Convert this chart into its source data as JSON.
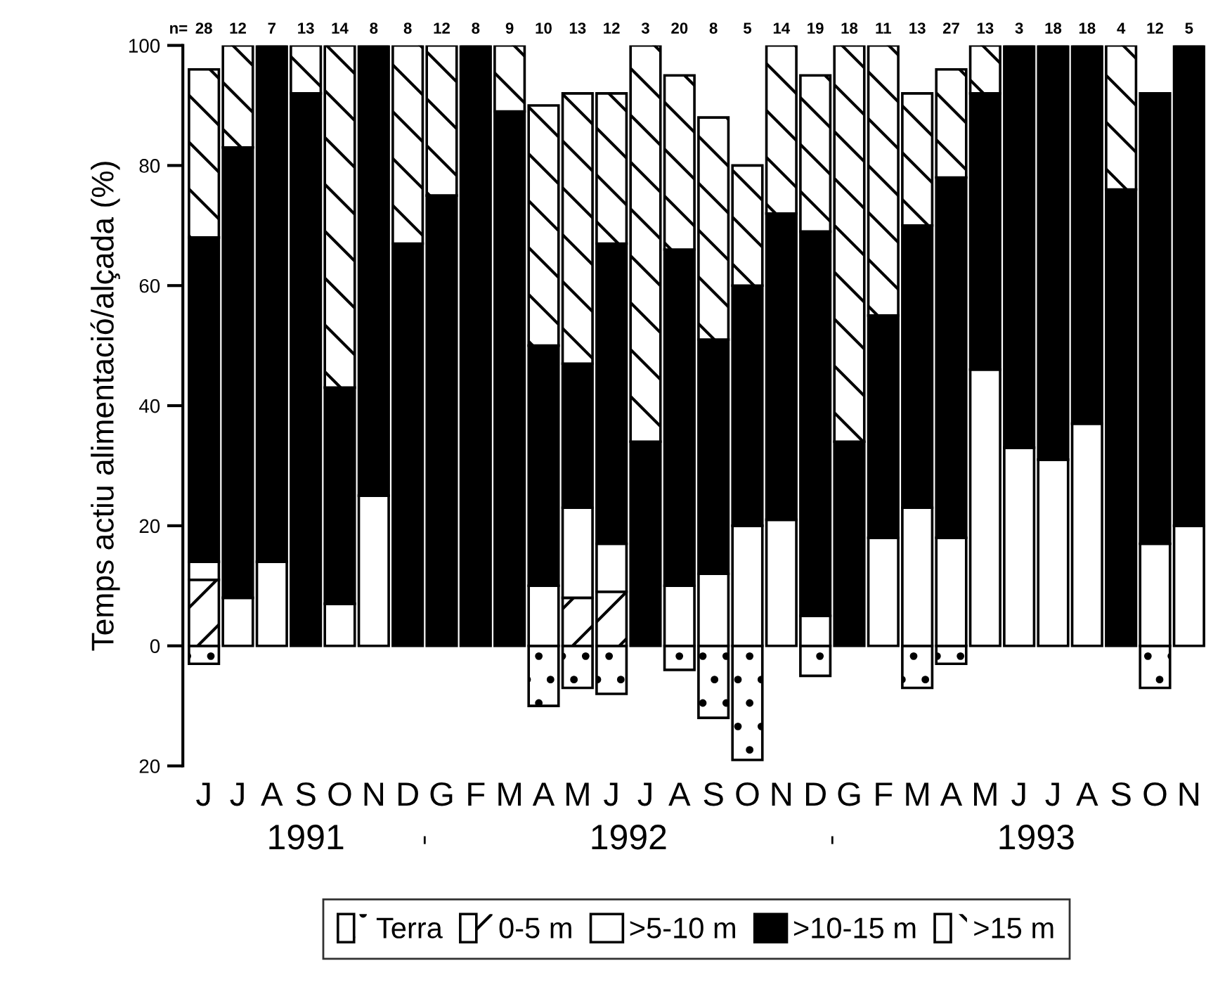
{
  "chart_data": {
    "type": "bar",
    "stacked": true,
    "ylabel": "Temps actiu alimentació/alçada (%)",
    "categories": [
      "J",
      "J",
      "A",
      "S",
      "O",
      "N",
      "D",
      "G",
      "F",
      "M",
      "A",
      "M",
      "J",
      "J",
      "A",
      "S",
      "O",
      "N",
      "D",
      "G",
      "F",
      "M",
      "A",
      "M",
      "J",
      "J",
      "A",
      "S",
      "O",
      "N"
    ],
    "series": [
      {
        "name": "Terra",
        "color": "#ffffff",
        "values": [
          -3,
          null,
          null,
          null,
          null,
          null,
          null,
          null,
          null,
          null,
          -10,
          -7,
          -8,
          null,
          -4,
          -12,
          -19,
          null,
          -5,
          null,
          null,
          -7,
          -3,
          null,
          null,
          null,
          null,
          null,
          -7,
          null
        ]
      },
      {
        "name": "0-5 m",
        "color": "#ffffff",
        "values": [
          11,
          null,
          null,
          null,
          null,
          null,
          null,
          null,
          null,
          null,
          null,
          8,
          9,
          null,
          null,
          null,
          null,
          null,
          null,
          null,
          null,
          null,
          null,
          null,
          null,
          null,
          null,
          null,
          null,
          null
        ]
      },
      {
        "name": ">5-10 m",
        "color": "#ffffff",
        "values": [
          3,
          8,
          14,
          null,
          7,
          25,
          null,
          null,
          null,
          null,
          10,
          15,
          8,
          null,
          10,
          12,
          20,
          21,
          5,
          null,
          18,
          23,
          18,
          46,
          33,
          31,
          37,
          null,
          17,
          20
        ]
      },
      {
        "name": ">10-15 m",
        "color": "#000000",
        "values": [
          54,
          75,
          86,
          92,
          36,
          75,
          67,
          75,
          100,
          89,
          40,
          24,
          50,
          34,
          56,
          39,
          40,
          51,
          64,
          34,
          37,
          47,
          60,
          46,
          67,
          69,
          63,
          76,
          75,
          80
        ]
      },
      {
        "name": ">15 m",
        "color": "#ffffff",
        "values": [
          28,
          17,
          null,
          8,
          57,
          null,
          33,
          25,
          null,
          11,
          40,
          45,
          25,
          66,
          29,
          37,
          20,
          28,
          26,
          66,
          45,
          22,
          18,
          8,
          null,
          null,
          null,
          24,
          null,
          null
        ]
      }
    ],
    "ylim": [
      -20,
      100
    ],
    "yticks": [
      {
        "value": -20,
        "label": "20"
      },
      0,
      20,
      40,
      60,
      80,
      100
    ],
    "annotations": [
      "n=",
      "28",
      "12",
      "7",
      "13",
      "14",
      "8",
      "8",
      "12",
      "8",
      "9",
      "10",
      "13",
      "12",
      "3",
      "20",
      "8",
      "5",
      "14",
      "19",
      "18",
      "11",
      "13",
      "27",
      "13",
      "3",
      "18",
      "18",
      "4",
      "12",
      "5",
      "1991",
      "1992",
      "1993"
    ],
    "legend": "bottom",
    "grid": false
  }
}
